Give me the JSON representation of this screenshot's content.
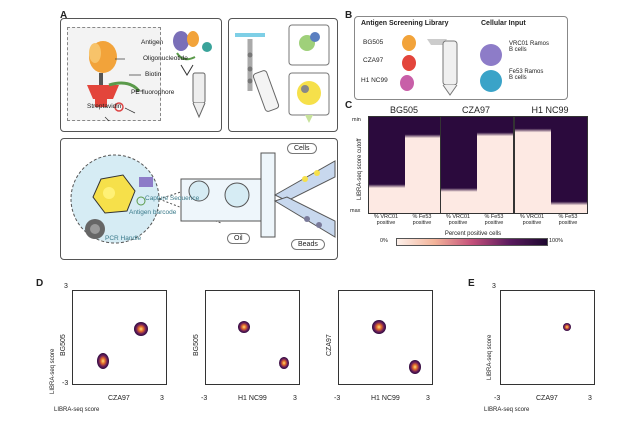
{
  "panels": {
    "a": "A",
    "b": "B",
    "c": "C",
    "d": "D",
    "e": "E"
  },
  "panelA": {
    "antigen": "Antigen",
    "oligo": "Oligonucleotide",
    "biotin": "Biotin",
    "pe": "PE fluorophore",
    "strep": "Streptavidin",
    "cells": "Cells",
    "oil": "Oil",
    "beads": "Beads",
    "barcode": "Antigen barcode",
    "capture": "Capture Sequence",
    "pcr": "PCR Handle"
  },
  "panelB": {
    "library": "Antigen Screening Library",
    "input": "Cellular Input",
    "antigens": [
      "BG505",
      "CZA97",
      "H1 NC99"
    ],
    "cells1": "VRC01 Ramos B cells",
    "cells2": "Fe53 Ramos B cells"
  },
  "panelC": {
    "titles": [
      "BG505",
      "CZA97",
      "H1 NC99"
    ],
    "ylabel": "LIBRA-seq score cutoff",
    "ymin": "min",
    "ymax": "max",
    "col1": "% VRC01 positive",
    "col2": "% Fe53 positive",
    "legend_title": "Percent positive cells",
    "legend_min": "0%",
    "legend_max": "100%"
  },
  "panelD": [
    {
      "x": "CZA97",
      "y": "BG505"
    },
    {
      "x": "H1 NC99",
      "y": "BG505"
    },
    {
      "x": "H1 NC99",
      "y": "CZA97"
    }
  ],
  "panelE": {
    "x": "CZA97",
    "y": "LIBRA-seq score"
  },
  "axis": {
    "min": "-3",
    "max": "3",
    "score": "LIBRA-seq score"
  },
  "colors": {
    "heat_dark": "#2b0a3d",
    "heat_light": "#fde9e3",
    "box_border": "#555555"
  }
}
